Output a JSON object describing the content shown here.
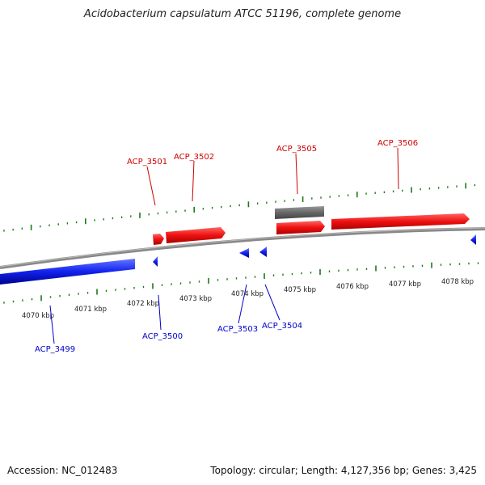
{
  "title": "Acidobacterium capsulatum ATCC 51196, complete genome",
  "footer": {
    "accession": "Accession: NC_012483",
    "summary": "Topology: circular; Length: 4,127,356 bp; Genes: 3,425"
  },
  "colors": {
    "forward": "#ee1111",
    "reverse": "#1122ee",
    "other": "#666666",
    "tick": "#1a7a1a",
    "backbone": "#888888",
    "forward_label": "#cc0000",
    "reverse_label": "#0000cc"
  },
  "scale_labels": [
    "4070 kbp",
    "4071 kbp",
    "4072 kbp",
    "4073 kbp",
    "4074 kbp",
    "4075 kbp",
    "4076 kbp",
    "4077 kbp",
    "4078 kbp"
  ],
  "genes": [
    {
      "id": "ACP_3499",
      "strand": "reverse"
    },
    {
      "id": "ACP_3500",
      "strand": "reverse"
    },
    {
      "id": "ACP_3501",
      "strand": "forward"
    },
    {
      "id": "ACP_3502",
      "strand": "forward"
    },
    {
      "id": "ACP_3503",
      "strand": "reverse"
    },
    {
      "id": "ACP_3504",
      "strand": "reverse"
    },
    {
      "id": "ACP_3505",
      "strand": "forward"
    },
    {
      "id": "ACP_3506",
      "strand": "forward"
    }
  ]
}
